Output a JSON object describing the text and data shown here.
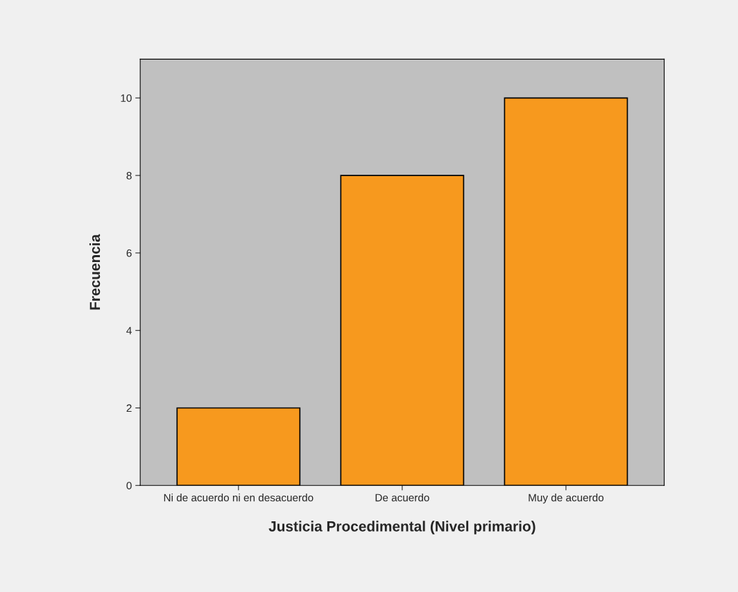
{
  "chart_data": {
    "type": "bar",
    "xlabel": "Justicia Procedimental (Nivel primario)",
    "ylabel": "Frecuencia",
    "categories": [
      "Ni de acuerdo ni en desacuerdo",
      "De acuerdo",
      "Muy de acuerdo"
    ],
    "values": [
      2,
      8,
      10
    ],
    "color": "#f7991e",
    "ylim": [
      0,
      11
    ],
    "yticks": [
      0,
      2,
      4,
      6,
      8,
      10
    ],
    "grid": false,
    "legend": false
  }
}
